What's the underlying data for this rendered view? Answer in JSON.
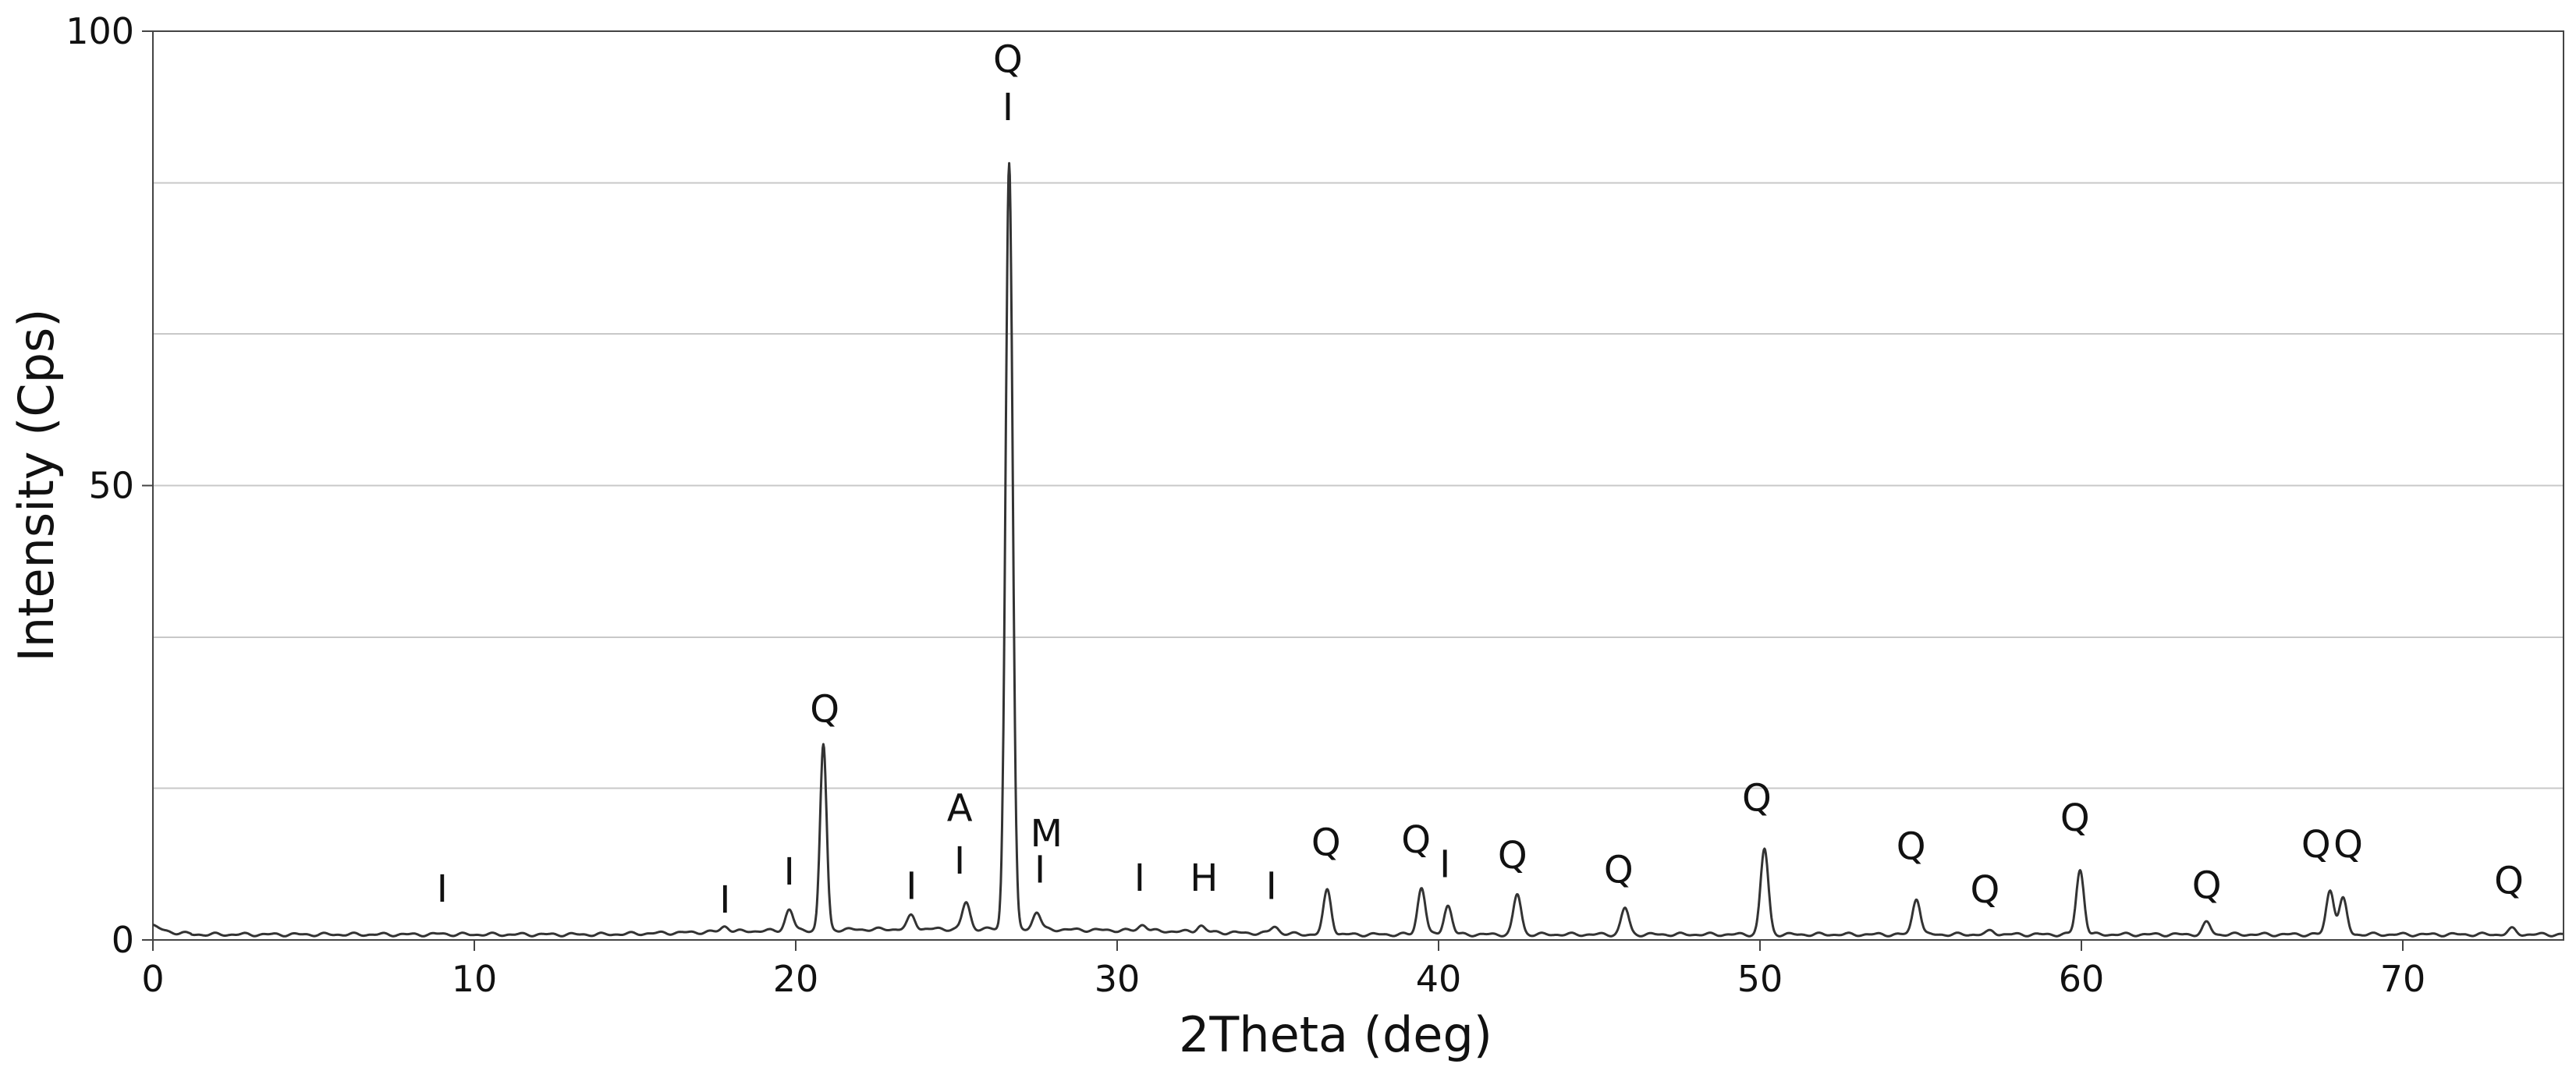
{
  "chart_data": {
    "type": "line",
    "xlabel": "2Theta (deg)",
    "ylabel": "Intensity (Cps)",
    "xlim": [
      0,
      75
    ],
    "ylim": [
      0,
      100
    ],
    "x_ticks": [
      0,
      10,
      20,
      30,
      40,
      50,
      60,
      70
    ],
    "x_tick_labels": [
      "0",
      "10",
      "20",
      "30",
      "40",
      "50",
      "60",
      "70"
    ],
    "y_ticks": [
      0,
      50,
      100
    ],
    "y_tick_labels": [
      "0",
      "50",
      "100"
    ],
    "y_gridlines": [
      0,
      16.7,
      33.3,
      50,
      66.7,
      83.3,
      100
    ],
    "grid": true,
    "line_color": "#333333",
    "grid_color": "#c8c8c8",
    "background": 0.6,
    "peaks": [
      {
        "x": 9.0,
        "y": 0.7
      },
      {
        "x": 17.8,
        "y": 1.2
      },
      {
        "x": 19.8,
        "y": 2.9
      },
      {
        "x": 20.86,
        "y": 21.0
      },
      {
        "x": 23.6,
        "y": 2.1
      },
      {
        "x": 25.3,
        "y": 3.5
      },
      {
        "x": 26.64,
        "y": 85.0
      },
      {
        "x": 27.5,
        "y": 2.5
      },
      {
        "x": 30.8,
        "y": 1.3
      },
      {
        "x": 32.6,
        "y": 1.3
      },
      {
        "x": 34.9,
        "y": 1.4
      },
      {
        "x": 36.54,
        "y": 5.5
      },
      {
        "x": 39.47,
        "y": 5.8
      },
      {
        "x": 40.29,
        "y": 3.8
      },
      {
        "x": 42.45,
        "y": 5.0
      },
      {
        "x": 45.8,
        "y": 3.5
      },
      {
        "x": 50.14,
        "y": 10.0
      },
      {
        "x": 54.87,
        "y": 4.6
      },
      {
        "x": 57.2,
        "y": 1.0
      },
      {
        "x": 59.96,
        "y": 7.7
      },
      {
        "x": 63.9,
        "y": 1.9
      },
      {
        "x": 67.74,
        "y": 5.5
      },
      {
        "x": 68.14,
        "y": 4.5
      },
      {
        "x": 73.4,
        "y": 1.2
      }
    ],
    "annotations": [
      {
        "label": "Q",
        "x": 26.6,
        "y": 95.5
      },
      {
        "label": "I",
        "x": 26.6,
        "y": 90.2
      },
      {
        "label": "Q",
        "x": 20.9,
        "y": 24.0
      },
      {
        "label": "A",
        "x": 25.1,
        "y": 13.1
      },
      {
        "label": "M",
        "x": 27.8,
        "y": 10.3
      },
      {
        "label": "I",
        "x": 27.6,
        "y": 6.3
      },
      {
        "label": "I",
        "x": 9.0,
        "y": 4.2
      },
      {
        "label": "I",
        "x": 17.8,
        "y": 3.0
      },
      {
        "label": "I",
        "x": 19.8,
        "y": 6.1
      },
      {
        "label": "I",
        "x": 23.6,
        "y": 4.5
      },
      {
        "label": "I",
        "x": 25.1,
        "y": 7.3
      },
      {
        "label": "I",
        "x": 30.7,
        "y": 5.4
      },
      {
        "label": "H",
        "x": 32.7,
        "y": 5.4
      },
      {
        "label": "I",
        "x": 34.8,
        "y": 4.5
      },
      {
        "label": "Q",
        "x": 36.5,
        "y": 9.3
      },
      {
        "label": "Q",
        "x": 39.3,
        "y": 9.6
      },
      {
        "label": "I",
        "x": 40.2,
        "y": 6.9
      },
      {
        "label": "Q",
        "x": 42.3,
        "y": 7.9
      },
      {
        "label": "Q",
        "x": 45.6,
        "y": 6.3
      },
      {
        "label": "Q",
        "x": 49.9,
        "y": 14.2
      },
      {
        "label": "Q",
        "x": 54.7,
        "y": 8.9
      },
      {
        "label": "Q",
        "x": 57.0,
        "y": 4.1
      },
      {
        "label": "Q",
        "x": 59.8,
        "y": 12.0
      },
      {
        "label": "Q",
        "x": 63.9,
        "y": 4.6
      },
      {
        "label": "Q",
        "x": 67.3,
        "y": 9.1
      },
      {
        "label": "Q",
        "x": 68.3,
        "y": 9.1
      },
      {
        "label": "Q",
        "x": 73.3,
        "y": 5.1
      }
    ]
  }
}
